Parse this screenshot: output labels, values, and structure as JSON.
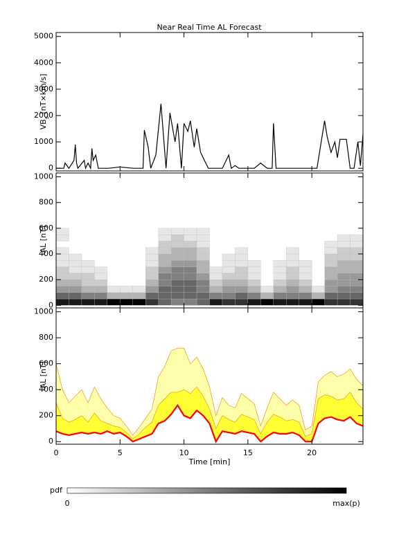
{
  "chart_data": [
    {
      "type": "line",
      "title": "Near Real Time AL Forecast",
      "ylabel": [
        "VB",
        "s",
        " [nT×km/s]"
      ],
      "color": "#000000",
      "xlim": [
        0,
        24
      ],
      "xticks": [
        0,
        5,
        10,
        15,
        20
      ],
      "ylim": [
        -100,
        5150
      ],
      "yticks": [
        0,
        1000,
        2000,
        3000,
        4000,
        5000
      ],
      "x": [
        0,
        0.6,
        0.7,
        1.0,
        1.4,
        1.5,
        1.6,
        1.7,
        2.2,
        2.3,
        2.5,
        2.7,
        2.8,
        2.9,
        3.1,
        3.3,
        3.5,
        4.1,
        5.0,
        6.0,
        6.8,
        6.9,
        7.2,
        7.4,
        7.8,
        8.2,
        8.4,
        8.6,
        8.9,
        9.3,
        9.5,
        9.8,
        10.0,
        10.3,
        10.5,
        10.8,
        11.0,
        11.3,
        11.6,
        11.9,
        12.2,
        12.5,
        13.0,
        13.5,
        13.7,
        14.0,
        14.3,
        14.8,
        15.5,
        16.0,
        16.5,
        16.9,
        17.0,
        17.2,
        18.0,
        19.0,
        20.0,
        20.4,
        20.8,
        21.0,
        21.2,
        21.5,
        21.8,
        22.0,
        22.2,
        22.5,
        22.7,
        23.0,
        23.3,
        23.6,
        23.8,
        24.0
      ],
      "values": [
        0,
        0,
        200,
        0,
        300,
        900,
        200,
        0,
        300,
        0,
        200,
        0,
        750,
        300,
        500,
        0,
        0,
        0,
        50,
        0,
        0,
        1450,
        800,
        0,
        500,
        2450,
        1200,
        0,
        2100,
        1000,
        1700,
        0,
        1700,
        1400,
        1800,
        800,
        1500,
        600,
        300,
        0,
        0,
        0,
        0,
        500,
        0,
        100,
        0,
        0,
        0,
        200,
        0,
        0,
        1700,
        0,
        0,
        0,
        0,
        0,
        1200,
        1800,
        1200,
        600,
        1000,
        400,
        1100,
        1100,
        1100,
        0,
        0,
        1000,
        100,
        1300
      ]
    },
    {
      "type": "heatmap",
      "ylabel": "-AL [nT]",
      "xlim": [
        0,
        24
      ],
      "xticks": [
        0,
        5,
        10,
        15,
        20
      ],
      "ylim": [
        -20,
        1030
      ],
      "yticks": [
        0,
        200,
        400,
        600,
        800,
        1000
      ],
      "xbins": [
        0,
        1,
        2,
        3,
        4,
        5,
        6,
        7,
        8,
        9,
        10,
        11,
        12,
        13,
        14,
        15,
        16,
        17,
        18,
        19,
        20,
        21,
        22,
        23,
        24
      ],
      "ybins": [
        0,
        50,
        100,
        150,
        200,
        250,
        300,
        350,
        400,
        450,
        500,
        550,
        600
      ],
      "z": [
        [
          0.9,
          0.9,
          0.9,
          0.9,
          1,
          1,
          1,
          0.8,
          0.6,
          0.5,
          0.5,
          0.6,
          0.9,
          0.8,
          0.8,
          0.9,
          1,
          0.9,
          0.9,
          0.9,
          1,
          0.8,
          0.8,
          0.8
        ],
        [
          0.6,
          0.6,
          0.5,
          0.5,
          0.3,
          0.3,
          0.3,
          0.6,
          0.6,
          0.6,
          0.6,
          0.6,
          0.5,
          0.5,
          0.6,
          0.5,
          0.3,
          0.5,
          0.5,
          0.5,
          0.3,
          0.6,
          0.6,
          0.6
        ],
        [
          0.4,
          0.4,
          0.3,
          0.3,
          0.1,
          0.1,
          0.1,
          0.4,
          0.6,
          0.6,
          0.6,
          0.5,
          0.3,
          0.4,
          0.4,
          0.3,
          0.1,
          0.3,
          0.4,
          0.3,
          0.1,
          0.4,
          0.5,
          0.5
        ],
        [
          0.3,
          0.3,
          0.2,
          0.2,
          0,
          0,
          0,
          0.3,
          0.5,
          0.6,
          0.6,
          0.5,
          0.2,
          0.3,
          0.3,
          0.2,
          0,
          0.2,
          0.3,
          0.2,
          0,
          0.4,
          0.4,
          0.4
        ],
        [
          0.2,
          0.2,
          0.2,
          0.1,
          0,
          0,
          0,
          0.2,
          0.5,
          0.5,
          0.5,
          0.4,
          0.1,
          0.2,
          0.2,
          0.1,
          0,
          0.1,
          0.2,
          0.1,
          0,
          0.3,
          0.4,
          0.4
        ],
        [
          0.2,
          0.1,
          0.1,
          0.1,
          0,
          0,
          0,
          0.2,
          0.4,
          0.5,
          0.5,
          0.3,
          0.1,
          0.1,
          0.2,
          0.1,
          0,
          0.1,
          0.2,
          0.1,
          0,
          0.3,
          0.3,
          0.3
        ],
        [
          0.1,
          0.1,
          0.1,
          0,
          0,
          0,
          0,
          0.1,
          0.3,
          0.4,
          0.4,
          0.3,
          0,
          0.1,
          0.1,
          0.1,
          0,
          0.1,
          0.1,
          0.1,
          0,
          0.2,
          0.3,
          0.3
        ],
        [
          0.1,
          0.1,
          0,
          0,
          0,
          0,
          0,
          0.1,
          0.3,
          0.3,
          0.3,
          0.2,
          0,
          0.1,
          0.1,
          0,
          0,
          0,
          0.1,
          0,
          0,
          0.2,
          0.2,
          0.2
        ],
        [
          0.1,
          0,
          0,
          0,
          0,
          0,
          0,
          0.1,
          0.2,
          0.3,
          0.3,
          0.2,
          0,
          0,
          0.1,
          0,
          0,
          0,
          0.1,
          0,
          0,
          0.1,
          0.2,
          0.2
        ],
        [
          0,
          0,
          0,
          0,
          0,
          0,
          0,
          0,
          0.2,
          0.2,
          0.2,
          0.1,
          0,
          0,
          0,
          0,
          0,
          0,
          0,
          0,
          0,
          0.1,
          0.1,
          0.1
        ],
        [
          0.1,
          0,
          0,
          0,
          0,
          0,
          0,
          0,
          0.1,
          0.2,
          0.1,
          0.1,
          0,
          0,
          0,
          0,
          0,
          0,
          0,
          0,
          0,
          0,
          0.1,
          0.1
        ],
        [
          0.1,
          0,
          0,
          0,
          0,
          0,
          0,
          0,
          0.1,
          0.1,
          0.1,
          0.1,
          0,
          0,
          0,
          0,
          0,
          0,
          0,
          0,
          0,
          0,
          0,
          0
        ]
      ],
      "colorbar": {
        "label": "pdf",
        "min_label": "0",
        "max_label": "max(p)"
      }
    },
    {
      "type": "band",
      "ylabel": "-AL [nT]",
      "xlabel": "Time [min]",
      "xlim": [
        0,
        24
      ],
      "xticks": [
        0,
        5,
        10,
        15,
        20
      ],
      "ylim": [
        -20,
        1030
      ],
      "yticks": [
        0,
        200,
        400,
        600,
        800,
        1000
      ],
      "x": [
        0,
        0.5,
        1,
        1.5,
        2,
        2.5,
        3,
        3.5,
        4,
        4.5,
        5,
        5.5,
        6,
        6.5,
        7,
        7.5,
        8,
        8.5,
        9,
        9.5,
        10,
        10.5,
        11,
        11.5,
        12,
        12.5,
        13,
        13.5,
        14,
        14.5,
        15,
        15.5,
        16,
        16.5,
        17,
        17.5,
        18,
        18.5,
        19,
        19.5,
        20,
        20.5,
        21,
        21.5,
        22,
        22.5,
        23,
        23.5,
        24
      ],
      "median": [
        80,
        60,
        50,
        60,
        70,
        60,
        70,
        60,
        80,
        60,
        70,
        40,
        0,
        20,
        40,
        60,
        140,
        160,
        210,
        280,
        200,
        180,
        240,
        200,
        140,
        0,
        80,
        70,
        60,
        80,
        70,
        60,
        0,
        40,
        70,
        60,
        60,
        70,
        50,
        0,
        0,
        140,
        180,
        190,
        170,
        160,
        190,
        140,
        120
      ],
      "q75": [
        300,
        180,
        150,
        170,
        200,
        150,
        220,
        160,
        140,
        120,
        110,
        70,
        20,
        60,
        110,
        150,
        280,
        330,
        380,
        380,
        400,
        370,
        420,
        350,
        250,
        100,
        200,
        170,
        150,
        210,
        190,
        170,
        60,
        150,
        210,
        190,
        160,
        170,
        150,
        40,
        60,
        330,
        360,
        350,
        320,
        330,
        380,
        300,
        250
      ],
      "q90": [
        600,
        400,
        300,
        350,
        400,
        300,
        420,
        330,
        260,
        200,
        180,
        120,
        50,
        110,
        180,
        250,
        500,
        580,
        700,
        720,
        720,
        600,
        650,
        560,
        420,
        200,
        340,
        280,
        260,
        370,
        330,
        290,
        120,
        260,
        380,
        330,
        280,
        320,
        280,
        90,
        120,
        460,
        510,
        540,
        500,
        520,
        560,
        480,
        430
      ],
      "median_color": "#ff0000",
      "inner_color": "#ffff33",
      "outer_color": "#ffffaa",
      "edge_color": "#f0a030"
    }
  ]
}
